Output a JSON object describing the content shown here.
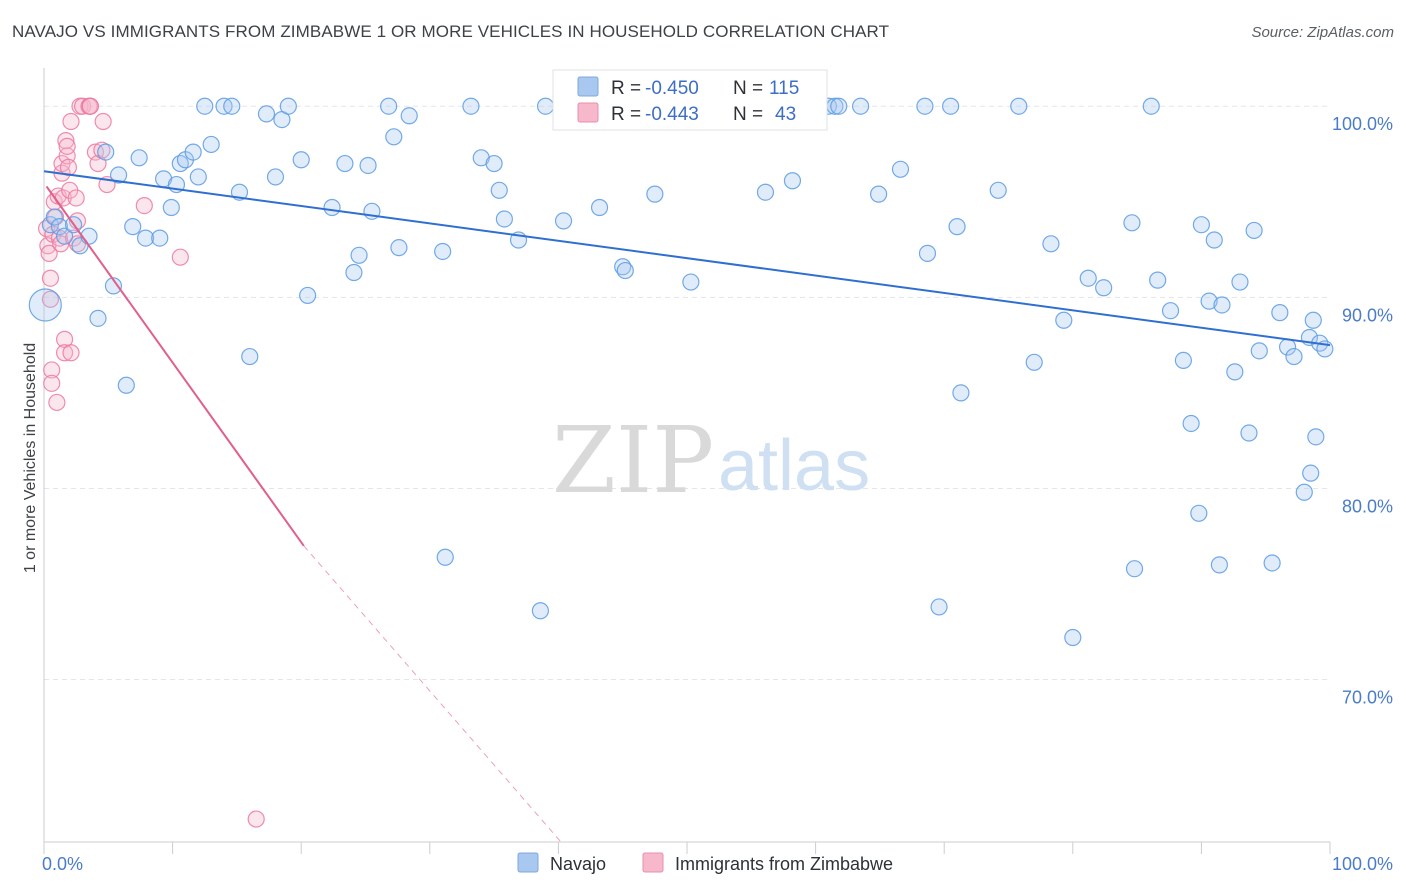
{
  "header": {
    "title": "NAVAJO VS IMMIGRANTS FROM ZIMBABWE 1 OR MORE VEHICLES IN HOUSEHOLD CORRELATION CHART",
    "source": "Source: ZipAtlas.com"
  },
  "watermark": {
    "zip": "ZIP",
    "atlas": "atlas"
  },
  "stats": {
    "rows": [
      {
        "r_label": "R =",
        "r_value": "-0.450",
        "n_label": "N =",
        "n_value": "115",
        "color": "#a8c8f0"
      },
      {
        "r_label": "R =",
        "r_value": "-0.443",
        "n_label": "N =",
        "n_value": "43",
        "color": "#f7b8cc"
      }
    ]
  },
  "legend": {
    "items": [
      {
        "label": "Navajo",
        "color": "#a8c8f0"
      },
      {
        "label": "Immigrants from Zimbabwe",
        "color": "#f7b8cc"
      }
    ]
  },
  "chart_data": {
    "type": "scatter",
    "ylabel": "1 or more Vehicles in Household",
    "xlabel": "",
    "xlim": [
      0,
      100
    ],
    "ylim": [
      61.5,
      102
    ],
    "x_ticks": [
      {
        "value": 0,
        "label": "0.0%"
      },
      {
        "value": 100,
        "label": "100.0%"
      }
    ],
    "y_ticks": [
      {
        "value": 100,
        "label": "100.0%"
      },
      {
        "value": 90,
        "label": "90.0%"
      },
      {
        "value": 80,
        "label": "80.0%"
      },
      {
        "value": 70,
        "label": "70.0%"
      }
    ],
    "grid": true,
    "legend_position": "bottom-center",
    "colors": {
      "navajo": "#5b9be3",
      "zimbabwe": "#ec79a0",
      "navajo_line": "#2f6fd0",
      "zimbabwe_line": "#e0608a"
    },
    "series": [
      {
        "name": "Navajo",
        "trend": {
          "x": [
            0,
            100
          ],
          "y": [
            96.6,
            87.5
          ]
        },
        "points": [
          [
            0.5,
            93.8
          ],
          [
            0.8,
            94.2
          ],
          [
            1.2,
            93.7
          ],
          [
            1.6,
            93.2
          ],
          [
            2.3,
            93.8
          ],
          [
            2.8,
            92.7
          ],
          [
            3.5,
            93.2
          ],
          [
            4.2,
            88.9
          ],
          [
            4.8,
            97.6
          ],
          [
            5.4,
            90.6
          ],
          [
            5.8,
            96.4
          ],
          [
            6.4,
            85.4
          ],
          [
            6.9,
            93.7
          ],
          [
            7.4,
            97.3
          ],
          [
            7.9,
            93.1
          ],
          [
            9.0,
            93.1
          ],
          [
            9.3,
            96.2
          ],
          [
            9.9,
            94.7
          ],
          [
            10.3,
            95.9
          ],
          [
            10.6,
            97.0
          ],
          [
            11.0,
            97.2
          ],
          [
            11.6,
            97.6
          ],
          [
            12.0,
            96.3
          ],
          [
            12.5,
            100
          ],
          [
            13.0,
            98.0
          ],
          [
            14.0,
            100
          ],
          [
            14.6,
            100
          ],
          [
            15.2,
            95.5
          ],
          [
            16.0,
            86.9
          ],
          [
            17.3,
            99.6
          ],
          [
            18.0,
            96.3
          ],
          [
            18.5,
            99.3
          ],
          [
            19.0,
            100
          ],
          [
            20.0,
            97.2
          ],
          [
            20.5,
            90.1
          ],
          [
            22.4,
            94.7
          ],
          [
            23.4,
            97.0
          ],
          [
            24.1,
            91.3
          ],
          [
            24.5,
            92.2
          ],
          [
            25.2,
            96.9
          ],
          [
            25.5,
            94.5
          ],
          [
            26.8,
            100
          ],
          [
            27.2,
            98.4
          ],
          [
            27.6,
            92.6
          ],
          [
            28.4,
            99.5
          ],
          [
            31.0,
            92.4
          ],
          [
            31.2,
            76.4
          ],
          [
            33.2,
            100
          ],
          [
            34.0,
            97.3
          ],
          [
            35.0,
            97.0
          ],
          [
            35.4,
            95.6
          ],
          [
            35.8,
            94.1
          ],
          [
            36.9,
            93.0
          ],
          [
            38.6,
            73.6
          ],
          [
            39.0,
            100
          ],
          [
            40.4,
            94.0
          ],
          [
            40.8,
            100
          ],
          [
            43.2,
            94.7
          ],
          [
            45.0,
            91.6
          ],
          [
            45.2,
            91.4
          ],
          [
            47.5,
            95.4
          ],
          [
            50.3,
            90.8
          ],
          [
            52.4,
            100
          ],
          [
            56.1,
            95.5
          ],
          [
            58.2,
            96.1
          ],
          [
            61.0,
            100
          ],
          [
            61.5,
            100
          ],
          [
            61.8,
            100
          ],
          [
            63.5,
            100
          ],
          [
            64.9,
            95.4
          ],
          [
            66.6,
            96.7
          ],
          [
            68.5,
            100
          ],
          [
            68.7,
            92.3
          ],
          [
            69.6,
            73.8
          ],
          [
            70.5,
            100
          ],
          [
            71.0,
            93.7
          ],
          [
            71.3,
            85.0
          ],
          [
            74.2,
            95.6
          ],
          [
            75.8,
            100
          ],
          [
            77.0,
            86.6
          ],
          [
            78.3,
            92.8
          ],
          [
            79.3,
            88.8
          ],
          [
            80.0,
            72.2
          ],
          [
            81.2,
            91.0
          ],
          [
            82.4,
            90.5
          ],
          [
            84.6,
            93.9
          ],
          [
            84.8,
            75.8
          ],
          [
            86.1,
            100
          ],
          [
            86.6,
            90.9
          ],
          [
            87.6,
            89.3
          ],
          [
            88.6,
            86.7
          ],
          [
            89.2,
            83.4
          ],
          [
            89.8,
            78.7
          ],
          [
            90.0,
            93.8
          ],
          [
            90.6,
            89.8
          ],
          [
            91.0,
            93.0
          ],
          [
            91.4,
            76.0
          ],
          [
            91.6,
            89.6
          ],
          [
            92.6,
            86.1
          ],
          [
            93.0,
            90.8
          ],
          [
            93.7,
            82.9
          ],
          [
            94.1,
            93.5
          ],
          [
            94.5,
            87.2
          ],
          [
            95.5,
            76.1
          ],
          [
            96.1,
            89.2
          ],
          [
            96.7,
            87.4
          ],
          [
            97.2,
            86.9
          ],
          [
            98.0,
            79.8
          ],
          [
            98.5,
            80.8
          ],
          [
            98.9,
            82.7
          ],
          [
            98.4,
            87.9
          ],
          [
            98.7,
            88.8
          ],
          [
            99.2,
            87.6
          ],
          [
            99.6,
            87.3
          ],
          [
            0.1,
            89.6
          ]
        ]
      },
      {
        "name": "Immigrants from Zimbabwe",
        "trend": {
          "x": [
            0.2,
            20.2
          ],
          "y": [
            95.8,
            77.0
          ]
        },
        "trend_dashed": {
          "x": [
            20.2,
            40.2
          ],
          "y": [
            77.0,
            61.5
          ]
        },
        "points": [
          [
            0.2,
            93.6
          ],
          [
            0.3,
            92.7
          ],
          [
            0.4,
            92.3
          ],
          [
            0.5,
            91.0
          ],
          [
            0.5,
            89.9
          ],
          [
            0.6,
            86.2
          ],
          [
            0.6,
            85.5
          ],
          [
            0.7,
            93.3
          ],
          [
            0.8,
            95.0
          ],
          [
            0.9,
            94.2
          ],
          [
            1.0,
            84.5
          ],
          [
            1.1,
            95.3
          ],
          [
            1.2,
            93.1
          ],
          [
            1.3,
            92.8
          ],
          [
            1.4,
            96.5
          ],
          [
            1.4,
            97.0
          ],
          [
            1.5,
            95.2
          ],
          [
            1.6,
            87.8
          ],
          [
            1.6,
            87.1
          ],
          [
            1.7,
            98.2
          ],
          [
            1.8,
            97.4
          ],
          [
            1.8,
            97.9
          ],
          [
            1.9,
            96.8
          ],
          [
            2.0,
            95.6
          ],
          [
            2.1,
            99.2
          ],
          [
            2.1,
            87.1
          ],
          [
            2.3,
            93.1
          ],
          [
            2.5,
            95.2
          ],
          [
            2.6,
            94.0
          ],
          [
            2.6,
            92.8
          ],
          [
            2.8,
            100
          ],
          [
            3.0,
            100
          ],
          [
            3.5,
            100
          ],
          [
            3.6,
            100
          ],
          [
            3.6,
            100
          ],
          [
            4.0,
            97.6
          ],
          [
            4.2,
            97.0
          ],
          [
            4.5,
            97.7
          ],
          [
            4.6,
            99.2
          ],
          [
            4.9,
            95.9
          ],
          [
            7.8,
            94.8
          ],
          [
            10.6,
            92.1
          ],
          [
            16.5,
            62.7
          ]
        ]
      }
    ]
  }
}
